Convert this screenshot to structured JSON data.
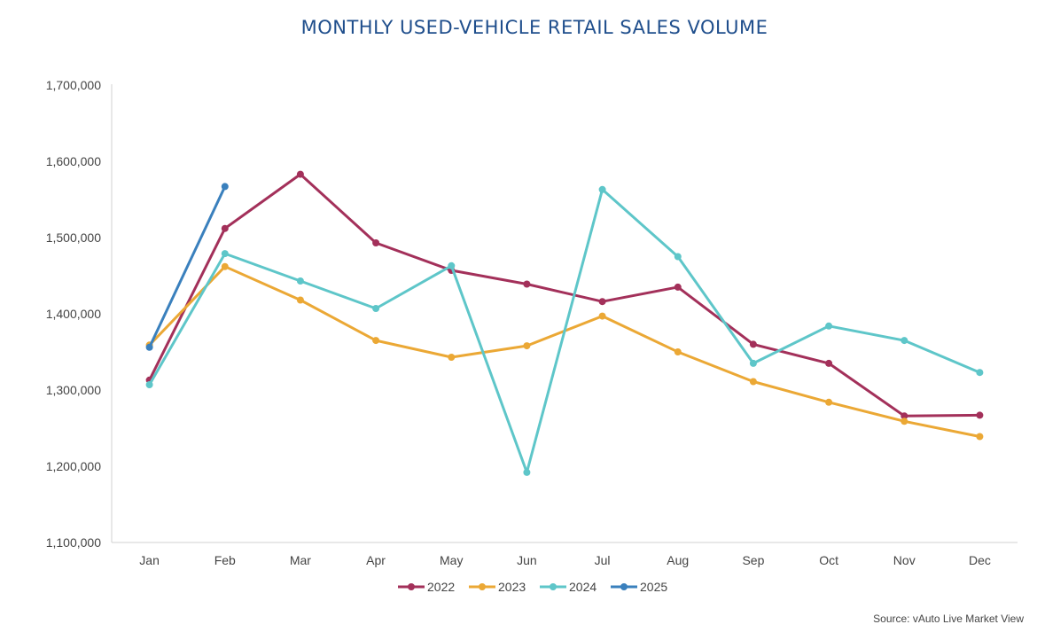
{
  "chart_data": {
    "type": "line",
    "title": "MONTHLY USED-VEHICLE RETAIL SALES VOLUME",
    "xlabel": "",
    "ylabel": "",
    "categories": [
      "Jan",
      "Feb",
      "Mar",
      "Apr",
      "May",
      "Jun",
      "Jul",
      "Aug",
      "Sep",
      "Oct",
      "Nov",
      "Dec"
    ],
    "ylim": [
      1100000,
      1700000
    ],
    "yticks": [
      1100000,
      1200000,
      1300000,
      1400000,
      1500000,
      1600000,
      1700000
    ],
    "ytick_labels": [
      "1,100,000",
      "1,200,000",
      "1,300,000",
      "1,400,000",
      "1,500,000",
      "1,600,000",
      "1,700,000"
    ],
    "grid": false,
    "legend_position": "bottom",
    "series": [
      {
        "name": "2022",
        "color": "#a3305a",
        "values": [
          1313000,
          1512000,
          1583000,
          1493000,
          1457000,
          1439000,
          1416000,
          1435000,
          1360000,
          1335000,
          1266000,
          1267000
        ]
      },
      {
        "name": "2023",
        "color": "#eba835",
        "values": [
          1359000,
          1462000,
          1418000,
          1365000,
          1343000,
          1358000,
          1397000,
          1350000,
          1311000,
          1284000,
          1259000,
          1239000
        ]
      },
      {
        "name": "2024",
        "color": "#5ec6c9",
        "values": [
          1307000,
          1479000,
          1443000,
          1407000,
          1463000,
          1192000,
          1563000,
          1475000,
          1335000,
          1384000,
          1365000,
          1323000
        ]
      },
      {
        "name": "2025",
        "color": "#3a80bd",
        "values": [
          1356000,
          1567000,
          null,
          null,
          null,
          null,
          null,
          null,
          null,
          null,
          null,
          null
        ]
      }
    ],
    "source": "Source: vAuto Live Market View"
  }
}
